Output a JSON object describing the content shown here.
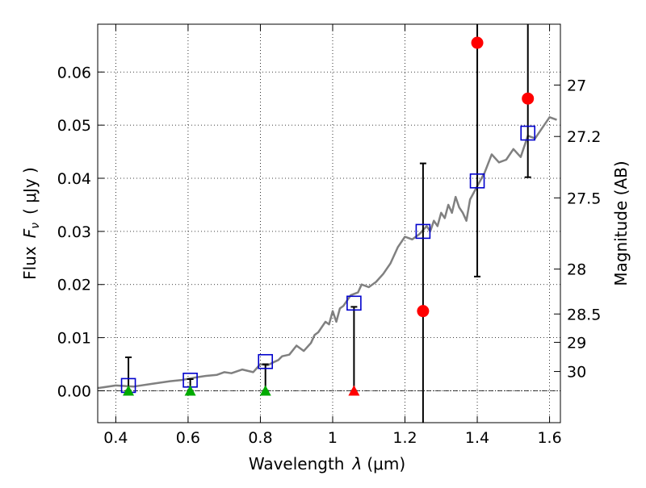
{
  "chart_data": {
    "type": "scatter",
    "xlabel": "Wavelength",
    "xlabel_symbol": "λ",
    "xlabel_unit": "(μm)",
    "ylabel": "Flux",
    "ylabel_symbol": "F",
    "ylabel_subscript": "ν",
    "ylabel_unit": "( μJy )",
    "y2label": "Magnitude (AB)",
    "xlim": [
      0.35,
      1.63
    ],
    "ylim": [
      -0.006,
      0.069
    ],
    "grid": true,
    "x_ticks": [
      0.4,
      0.6,
      0.8,
      1.0,
      1.2,
      1.4,
      1.6
    ],
    "x_tick_labels": [
      "0.4",
      "0.6",
      "0.8",
      "1",
      "1.2",
      "1.4",
      "1.6"
    ],
    "y_ticks": [
      0.0,
      0.01,
      0.02,
      0.03,
      0.04,
      0.05,
      0.06
    ],
    "y_tick_labels": [
      "0.00",
      "0.01",
      "0.02",
      "0.03",
      "0.04",
      "0.05",
      "0.06"
    ],
    "y2_ticks": [
      27,
      27.2,
      27.5,
      28,
      28.5,
      29,
      30
    ],
    "y2_tick_labels": [
      "27",
      "27.2",
      "27.5",
      "28",
      "28.5",
      "29",
      "30"
    ],
    "sed_model": {
      "color": "#808080",
      "x": [
        0.35,
        0.4,
        0.45,
        0.5,
        0.55,
        0.58,
        0.62,
        0.65,
        0.68,
        0.7,
        0.72,
        0.75,
        0.78,
        0.8,
        0.82,
        0.84,
        0.85,
        0.86,
        0.88,
        0.9,
        0.92,
        0.94,
        0.95,
        0.96,
        0.98,
        0.99,
        1.0,
        1.01,
        1.02,
        1.03,
        1.05,
        1.07,
        1.08,
        1.1,
        1.12,
        1.14,
        1.16,
        1.18,
        1.19,
        1.2,
        1.22,
        1.24,
        1.26,
        1.27,
        1.28,
        1.29,
        1.3,
        1.31,
        1.32,
        1.33,
        1.34,
        1.35,
        1.36,
        1.37,
        1.38,
        1.4,
        1.42,
        1.44,
        1.46,
        1.48,
        1.5,
        1.52,
        1.54,
        1.56,
        1.58,
        1.6,
        1.62
      ],
      "y": [
        0.0005,
        0.001,
        0.0008,
        0.0013,
        0.0018,
        0.002,
        0.0025,
        0.0028,
        0.003,
        0.0035,
        0.0033,
        0.004,
        0.0035,
        0.005,
        0.0048,
        0.0055,
        0.0058,
        0.0065,
        0.0068,
        0.0085,
        0.0075,
        0.009,
        0.0105,
        0.011,
        0.013,
        0.0125,
        0.015,
        0.013,
        0.0155,
        0.016,
        0.018,
        0.0185,
        0.02,
        0.0195,
        0.0205,
        0.022,
        0.024,
        0.027,
        0.028,
        0.029,
        0.0285,
        0.0295,
        0.031,
        0.03,
        0.032,
        0.031,
        0.0335,
        0.0325,
        0.035,
        0.0335,
        0.0365,
        0.0345,
        0.0335,
        0.032,
        0.036,
        0.0385,
        0.041,
        0.0445,
        0.043,
        0.0435,
        0.0455,
        0.044,
        0.048,
        0.0475,
        0.0495,
        0.0515,
        0.051
      ]
    },
    "model_photometry": {
      "color": "#0000cc",
      "x": [
        0.435,
        0.606,
        0.814,
        1.059,
        1.25,
        1.4,
        1.54
      ],
      "y": [
        0.001,
        0.002,
        0.0055,
        0.0165,
        0.03,
        0.0395,
        0.0485
      ]
    },
    "observed_detections": {
      "color": "#ff0000",
      "x": [
        1.25,
        1.4,
        1.54
      ],
      "y": [
        0.015,
        0.0655,
        0.055
      ],
      "yerr_low": [
        0.024,
        0.044,
        0.0148
      ],
      "yerr_high": [
        0.0278,
        0.0455,
        0.0194
      ]
    },
    "upper_limits": [
      {
        "x": 0.435,
        "y": 0.0,
        "color": "#00aa00",
        "err_top": 0.0063
      },
      {
        "x": 0.606,
        "y": 0.0,
        "color": "#00aa00",
        "err_top": 0.0022
      },
      {
        "x": 0.814,
        "y": 0.0,
        "color": "#00aa00",
        "err_top": 0.005
      },
      {
        "x": 1.059,
        "y": 0.0,
        "color": "#ff0000",
        "err_top": 0.0158
      }
    ]
  }
}
